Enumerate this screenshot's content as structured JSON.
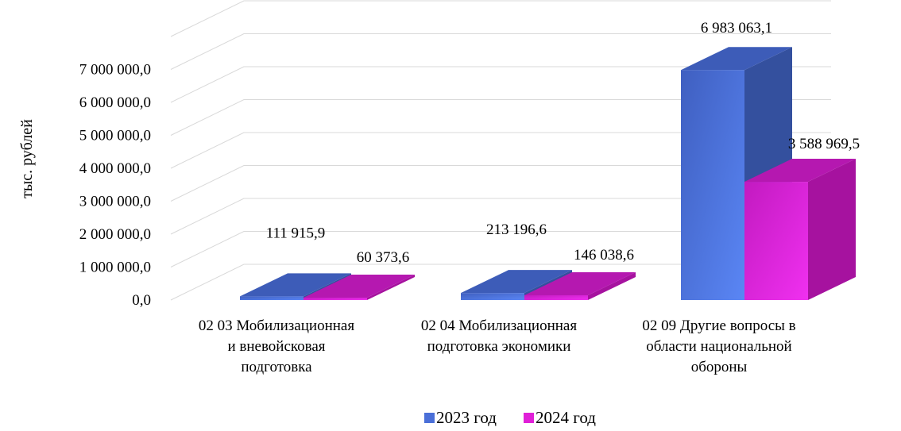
{
  "chart_data": {
    "type": "bar",
    "ylabel": "тыс. рублей",
    "ylim": [
      0,
      7000000
    ],
    "y_ticks": [
      "0,0",
      "1 000 000,0",
      "2 000 000,0",
      "3 000 000,0",
      "4 000 000,0",
      "5 000 000,0",
      "6 000 000,0",
      "7 000 000,0"
    ],
    "categories": [
      [
        "02 03 Мобилизационная",
        "и вневойсковая",
        "подготовка"
      ],
      [
        "02 04 Мобилизационная",
        "подготовка экономики"
      ],
      [
        "02 09 Другие вопросы в",
        "области национальной",
        "обороны"
      ]
    ],
    "series": [
      {
        "name": "2023 год",
        "values": [
          111915.9,
          213196.6,
          6983063.1
        ],
        "labels": [
          "111 915,9",
          "213 196,6",
          "6 983 063,1"
        ],
        "color": "#4a6fd8"
      },
      {
        "name": "2024 год",
        "values": [
          60373.6,
          146038.6,
          3588969.5
        ],
        "labels": [
          "60 373,6",
          "146 038,6",
          "3 588 969,5"
        ],
        "color": "#e020d8"
      }
    ],
    "grid": true,
    "legend": "bottom",
    "three_d": true
  }
}
